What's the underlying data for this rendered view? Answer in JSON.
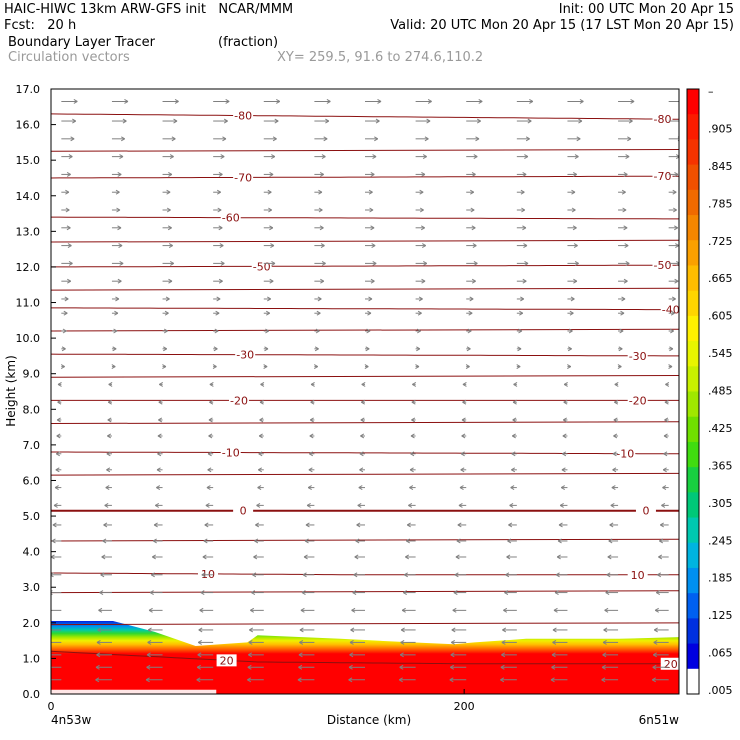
{
  "header": {
    "line1_left": "HAIC-HIWC 13km ARW-GFS init   NCAR/MMM",
    "line1_right": "Init: 00 UTC Mon 20 Apr 15",
    "line2_left": "Fcst:   20 h",
    "line2_right": "Valid: 20 UTC Mon 20 Apr 15 (17 LST Mon 20 Apr 15)",
    "field1_name": "Boundary Layer Tracer",
    "field1_units": "(fraction)",
    "field2_name": "Circulation vectors",
    "xy_range": "XY= 259.5, 91.6 to 274.6,110.2"
  },
  "colors": {
    "contour": "#8b1010",
    "vector": "#808080",
    "text_gray": "#9a9a9a"
  },
  "chart_data": {
    "type": "cross-section",
    "ylabel": "Height (km)",
    "xlabel": "Distance (km)",
    "ylim": [
      0,
      17
    ],
    "yticks": [
      "0.0",
      "1.0",
      "2.0",
      "3.0",
      "4.0",
      "5.0",
      "6.0",
      "7.0",
      "8.0",
      "9.0",
      "10.0",
      "11.0",
      "12.0",
      "13.0",
      "14.0",
      "15.0",
      "16.0",
      "17.0"
    ],
    "xlim": [
      0,
      304
    ],
    "xticks": [
      {
        "value": 0,
        "label": "0"
      },
      {
        "value": 200,
        "label": "200"
      }
    ],
    "x_endpoints": {
      "left": "4n53w",
      "right": "6n51w"
    },
    "colorbar": {
      "labels": [
        "–",
        ".905",
        ".845",
        ".785",
        ".725",
        ".665",
        ".605",
        ".545",
        ".485",
        ".425",
        ".365",
        ".305",
        ".245",
        ".185",
        ".125",
        ".065",
        ".005"
      ],
      "colors": [
        "#ff0000",
        "#fb1c00",
        "#f53300",
        "#f05000",
        "#f06a00",
        "#f58600",
        "#fba000",
        "#ffbc00",
        "#ffd500",
        "#fff000",
        "#e8f500",
        "#c8f000",
        "#a0e800",
        "#70e000",
        "#40dc10",
        "#18d040",
        "#00c878",
        "#00c8b0",
        "#00b4e0",
        "#0090f0",
        "#0060f0",
        "#0030e0",
        "#0000e0",
        "#ffffff"
      ]
    },
    "tracer_top_km": [
      [
        0,
        2.05
      ],
      [
        30,
        2.05
      ],
      [
        50,
        1.75
      ],
      [
        70,
        1.35
      ],
      [
        95,
        1.45
      ],
      [
        100,
        1.65
      ],
      [
        140,
        1.55
      ],
      [
        175,
        1.45
      ],
      [
        195,
        1.4
      ],
      [
        205,
        1.45
      ],
      [
        230,
        1.55
      ],
      [
        275,
        1.55
      ],
      [
        304,
        1.6
      ]
    ],
    "isotherms": [
      {
        "label": "20",
        "heights_km": [
          [
            0,
            1.2
          ],
          [
            100,
            0.9
          ],
          [
            200,
            0.85
          ],
          [
            304,
            0.85
          ]
        ],
        "labels_at": [
          85,
          300
        ]
      },
      {
        "label": "10",
        "heights_km": [
          [
            0,
            3.4
          ],
          [
            150,
            3.35
          ],
          [
            304,
            3.35
          ]
        ],
        "labels_at": [
          76,
          284
        ]
      },
      {
        "label": "0",
        "heights_km": [
          [
            0,
            5.15
          ],
          [
            304,
            5.15
          ]
        ],
        "labels_at": [
          93,
          288
        ]
      },
      {
        "label": "-10",
        "heights_km": [
          [
            0,
            6.8
          ],
          [
            304,
            6.75
          ]
        ],
        "labels_at": [
          87,
          278
        ]
      },
      {
        "label": "-20",
        "heights_km": [
          [
            0,
            8.25
          ],
          [
            304,
            8.25
          ]
        ],
        "labels_at": [
          91,
          284
        ]
      },
      {
        "label": "-30",
        "heights_km": [
          [
            0,
            9.55
          ],
          [
            304,
            9.5
          ]
        ],
        "labels_at": [
          94,
          284
        ]
      },
      {
        "label": "-40",
        "heights_km": [
          [
            0,
            10.85
          ],
          [
            304,
            10.8
          ]
        ],
        "labels_at": [
          300,
          300
        ]
      },
      {
        "label": "-50",
        "heights_km": [
          [
            0,
            12.0
          ],
          [
            304,
            12.05
          ]
        ],
        "labels_at": [
          102,
          296
        ]
      },
      {
        "label": "-60",
        "heights_km": [
          [
            0,
            13.4
          ],
          [
            304,
            13.35
          ]
        ],
        "labels_at": [
          87,
          87
        ]
      },
      {
        "label": "-70",
        "heights_km": [
          [
            0,
            14.5
          ],
          [
            304,
            14.55
          ]
        ],
        "labels_at": [
          93,
          296
        ]
      },
      {
        "label": "-80",
        "heights_km": [
          [
            0,
            16.3
          ],
          [
            304,
            16.15
          ]
        ],
        "labels_at": [
          93,
          296
        ]
      }
    ],
    "other_contours_km": [
      1.95,
      2.85,
      4.3,
      6.15,
      7.6,
      8.9,
      10.2,
      11.35,
      12.7,
      15.25
    ],
    "vectors": {
      "columns": 13,
      "rows_km": [
        0.4,
        0.75,
        1.1,
        1.45,
        1.8,
        2.35,
        2.85,
        3.35,
        3.85,
        4.3,
        4.75,
        5.3,
        5.8,
        6.3,
        6.75,
        7.25,
        7.7,
        8.2,
        8.7,
        9.2,
        9.7,
        10.2,
        10.7,
        11.1,
        11.6,
        12.1,
        12.6,
        13.1,
        13.6,
        14.1,
        14.6,
        15.1,
        15.6,
        16.1,
        16.65
      ],
      "u_profile": [
        [
          0,
          -1.0
        ],
        [
          2,
          -0.8
        ],
        [
          4,
          -0.5
        ],
        [
          6,
          -0.2
        ],
        [
          9,
          0.0
        ],
        [
          11,
          0.25
        ],
        [
          12,
          0.6
        ],
        [
          14,
          0.3
        ],
        [
          16,
          0.8
        ],
        [
          17,
          1.0
        ]
      ]
    }
  }
}
